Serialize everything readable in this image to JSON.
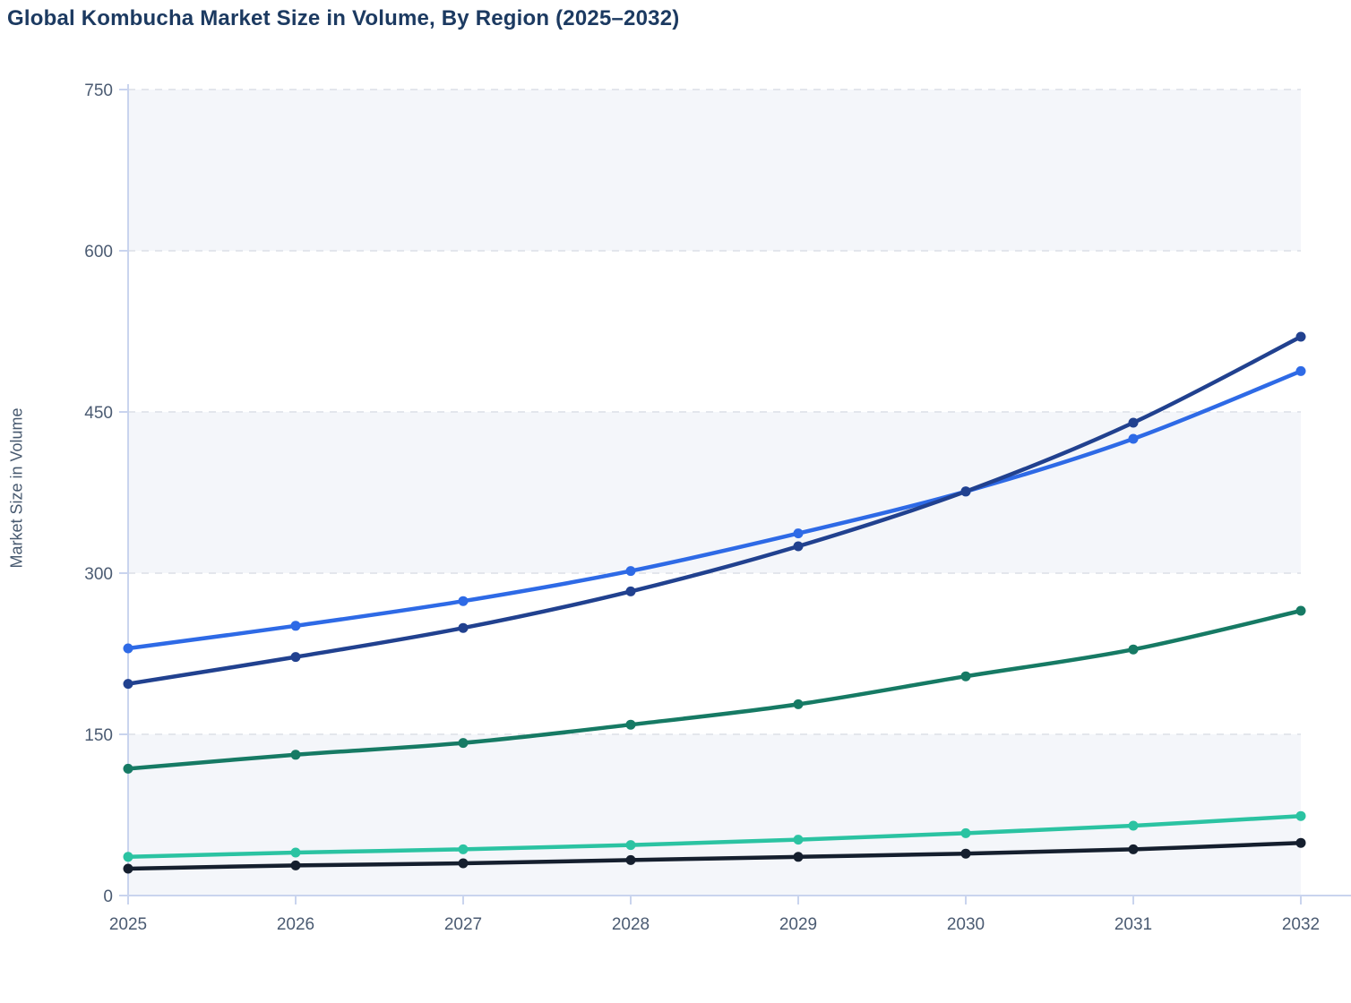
{
  "page": {
    "title": "Global Kombucha Market Size in Volume, By Region (2025–2032)"
  },
  "chart_data": {
    "type": "line",
    "title": "Global Kombucha Market Size in Volume, By Region (2025–2032)",
    "xlabel": "",
    "ylabel": "Market Size in Volume",
    "categories": [
      "2025",
      "2026",
      "2027",
      "2028",
      "2029",
      "2030",
      "2031",
      "2032"
    ],
    "y_ticks": [
      0,
      150,
      300,
      450,
      600,
      750
    ],
    "ylim": [
      0,
      750
    ],
    "grid": "horizontal-dashed",
    "band_shading": "alternating-rows",
    "legend_position": "none",
    "marker": "circle",
    "line_style": "smooth",
    "series": [
      {
        "name": "series-royal-blue",
        "color": "#2e6ae6",
        "values": [
          230,
          251,
          274,
          302,
          337,
          376,
          425,
          488
        ]
      },
      {
        "name": "series-navy",
        "color": "#21418f",
        "values": [
          197,
          222,
          249,
          283,
          325,
          376,
          440,
          520
        ]
      },
      {
        "name": "series-green",
        "color": "#167a64",
        "values": [
          118,
          131,
          142,
          159,
          178,
          204,
          229,
          265
        ]
      },
      {
        "name": "series-teal",
        "color": "#2bc3a2",
        "values": [
          36,
          40,
          43,
          47,
          52,
          58,
          65,
          74
        ]
      },
      {
        "name": "series-black",
        "color": "#151f2e",
        "values": [
          25,
          28,
          30,
          33,
          36,
          39,
          43,
          49
        ]
      }
    ]
  },
  "style": {
    "title_color": "#1c3a61",
    "axis_color": "#c9d4ee",
    "grid_color": "#e3e6ec",
    "tick_label_color": "#4b5b72",
    "band_color": "#f4f6fa",
    "background": "#ffffff"
  }
}
